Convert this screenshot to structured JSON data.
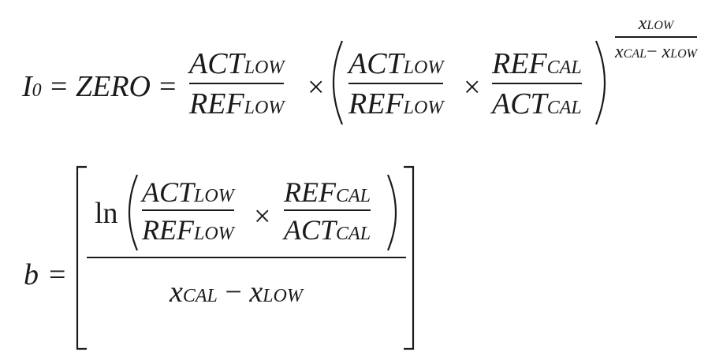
{
  "eq1": {
    "lhs_symbol": "I",
    "lhs_sub": "0",
    "eq_sign": "=",
    "zero": "ZERO",
    "times": "×",
    "act": "ACT",
    "ref": "REF",
    "low": "LOW",
    "cal": "CAL",
    "x": "x",
    "minus": "−"
  },
  "eq2": {
    "lhs_symbol": "b",
    "eq_sign": "=",
    "ln": "ln",
    "times": "×",
    "act": "ACT",
    "ref": "REF",
    "low": "LOW",
    "cal": "CAL",
    "x": "x",
    "minus": "−"
  }
}
